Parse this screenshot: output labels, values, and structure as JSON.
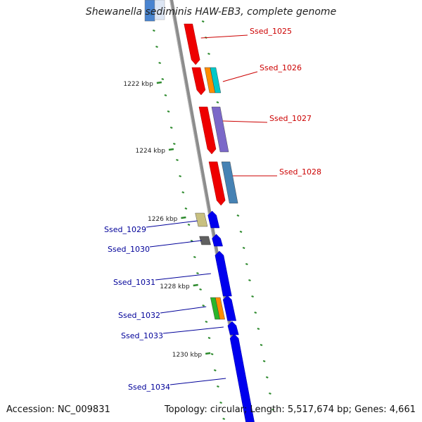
{
  "title": "Shewanella sediminis HAW-EB3, complete genome",
  "footer": {
    "accession_label": "Accession: NC_009831",
    "topology_label": "Topology: circular; Length: 5,517,674 bp; Genes: 4,661"
  },
  "colors": {
    "backbone": "#8c8c8c",
    "tick": "#2d8a2d",
    "forward_gene": "#ee0000",
    "reverse_gene": "#0000ee",
    "forward_label": "#cc0000",
    "reverse_label": "#000099"
  },
  "kbp_labels": [
    "1222 kbp",
    "1224 kbp",
    "1226 kbp",
    "1228 kbp",
    "1230 kbp"
  ],
  "forward_genes": [
    {
      "label": "Ssed_1025",
      "annotation_colors": []
    },
    {
      "label": "Ssed_1026",
      "annotation_colors": [
        "#ff8c00",
        "#00c8c8"
      ]
    },
    {
      "label": "Ssed_1027",
      "annotation_colors": [
        "#7b68c8"
      ]
    },
    {
      "label": "Ssed_1028",
      "annotation_colors": [
        "#4682b4"
      ]
    }
  ],
  "reverse_genes": [
    {
      "label": "Ssed_1029",
      "annotation_colors": [
        "#c8c080"
      ]
    },
    {
      "label": "Ssed_1030",
      "annotation_colors": [
        "#606060"
      ]
    },
    {
      "label": "Ssed_1031",
      "annotation_colors": []
    },
    {
      "label": "Ssed_1032",
      "annotation_colors": [
        "#2ab52a",
        "#ff8c00"
      ]
    },
    {
      "label": "Ssed_1033",
      "annotation_colors": []
    },
    {
      "label": "Ssed_1034",
      "annotation_colors": []
    }
  ]
}
